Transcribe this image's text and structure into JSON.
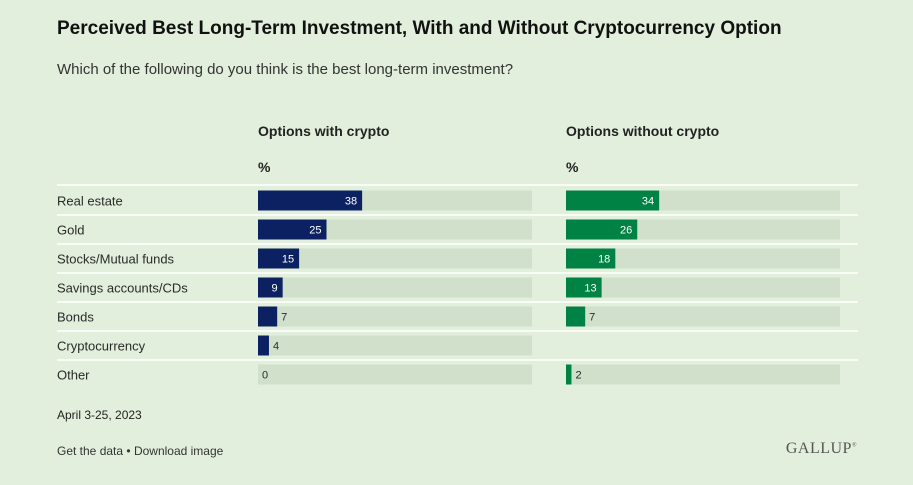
{
  "title": "Perceived Best Long-Term Investment, With and Without Cryptocurrency Option",
  "subtitle": "Which of the following do you think is the best long-term investment?",
  "date": "April 3-25, 2023",
  "footer": {
    "get_data": "Get the data",
    "separator": "•",
    "download": "Download image"
  },
  "logo": "GALLUP",
  "colors": {
    "background": "#e2efdc",
    "track": "#d0e0cb",
    "with_crypto": "#0c2161",
    "without_crypto": "#008244",
    "divider": "#ffffff"
  },
  "chart_data": {
    "type": "bar",
    "orientation": "horizontal",
    "unit": "%",
    "xlim": [
      0,
      100
    ],
    "categories": [
      "Real estate",
      "Gold",
      "Stocks/Mutual funds",
      "Savings accounts/CDs",
      "Bonds",
      "Cryptocurrency",
      "Other"
    ],
    "series": [
      {
        "name": "Options with crypto",
        "values": [
          38,
          25,
          15,
          9,
          7,
          4,
          0
        ]
      },
      {
        "name": "Options without crypto",
        "values": [
          34,
          26,
          18,
          13,
          7,
          null,
          2
        ]
      }
    ]
  }
}
